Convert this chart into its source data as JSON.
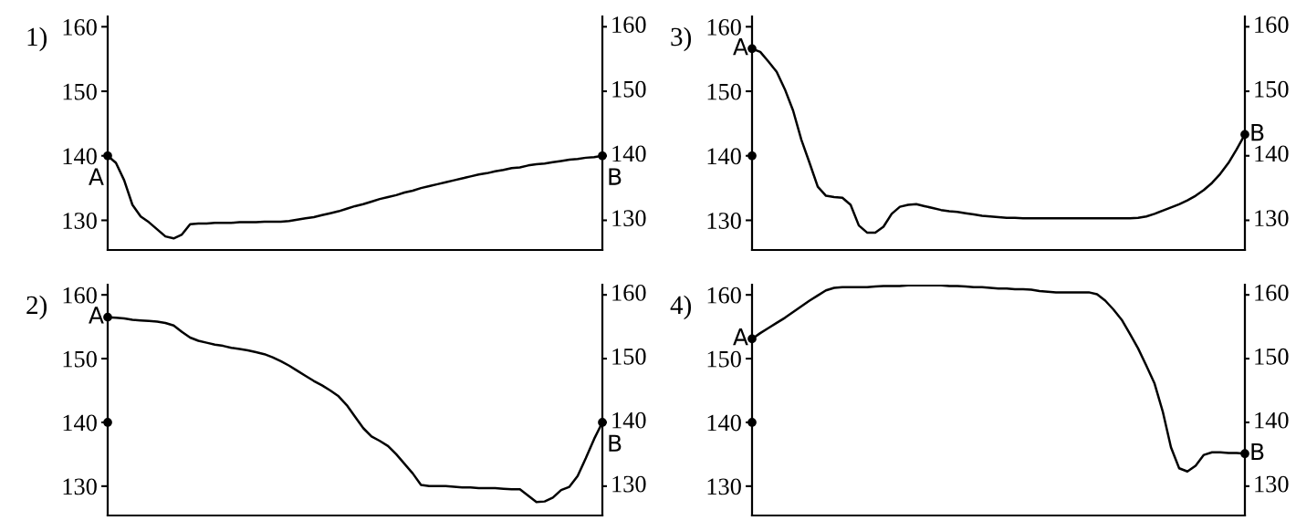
{
  "chart_data": [
    {
      "type": "line",
      "title": "1)",
      "categories": [
        null,
        null,
        null,
        null,
        null,
        null,
        null,
        null,
        null,
        null,
        null,
        null,
        null,
        null,
        null,
        null,
        null,
        null,
        null,
        null,
        null,
        null,
        null,
        null,
        null,
        null,
        null,
        null,
        null,
        null,
        null,
        null,
        null,
        null,
        null,
        null,
        null,
        null,
        null,
        null,
        null,
        null,
        null,
        null,
        null,
        null,
        null,
        null,
        null,
        null,
        null,
        null,
        null,
        null,
        null,
        null,
        null,
        null,
        null,
        null,
        null
      ],
      "series": [
        {
          "color": "#000000",
          "values": [
            140,
            138.9,
            136.2,
            132.4,
            130.6,
            129.7,
            128.6,
            127.5,
            127.2,
            127.8,
            129.4,
            129.5,
            129.5,
            129.6,
            129.6,
            129.6,
            129.7,
            129.7,
            129.7,
            129.8,
            129.8,
            129.8,
            129.9,
            130.1,
            130.3,
            130.5,
            130.8,
            131.1,
            131.4,
            131.8,
            132.2,
            132.5,
            132.9,
            133.3,
            133.6,
            133.9,
            134.3,
            134.6,
            135.0,
            135.3,
            135.6,
            135.9,
            136.2,
            136.5,
            136.8,
            137.1,
            137.3,
            137.6,
            137.8,
            138.1,
            138.2,
            138.5,
            138.7,
            138.8,
            139.0,
            139.2,
            139.4,
            139.5,
            139.7,
            139.8,
            140
          ]
        },
        {
          "type": "scatter",
          "color": "#000000",
          "marker": "circle",
          "values": [
            140,
            null,
            null,
            null,
            null,
            null,
            null,
            null,
            null,
            null,
            null,
            null,
            null,
            null,
            null,
            null,
            null,
            null,
            null,
            null,
            null,
            null,
            null,
            null,
            null,
            null,
            null,
            null,
            null,
            null,
            null,
            null,
            null,
            null,
            null,
            null,
            null,
            null,
            null,
            null,
            null,
            null,
            null,
            null,
            null,
            null,
            null,
            null,
            null,
            null,
            null,
            null,
            null,
            null,
            null,
            null,
            null,
            null,
            null,
            null,
            140
          ]
        }
      ],
      "annotations": [
        "A",
        "B"
      ],
      "ylim": [
        125.4,
        161.6
      ],
      "yticks": [
        130,
        140,
        150,
        160
      ],
      "y2lim": [
        125.4,
        161.6
      ],
      "y2ticks": [
        130,
        140,
        150,
        160
      ],
      "tick_labels": "y"
    },
    {
      "type": "line",
      "title": "3)",
      "categories": [
        null,
        null,
        null,
        null,
        null,
        null,
        null,
        null,
        null,
        null,
        null,
        null,
        null,
        null,
        null,
        null,
        null,
        null,
        null,
        null,
        null,
        null,
        null,
        null,
        null,
        null,
        null,
        null,
        null,
        null,
        null,
        null,
        null,
        null,
        null,
        null,
        null,
        null,
        null,
        null,
        null,
        null,
        null,
        null,
        null,
        null,
        null,
        null,
        null,
        null,
        null,
        null,
        null,
        null,
        null,
        null,
        null,
        null,
        null,
        null,
        null
      ],
      "series": [
        {
          "color": "#000000",
          "values": [
            156.6,
            156.1,
            154.6,
            153.0,
            150.3,
            147.0,
            142.5,
            138.9,
            135.2,
            133.8,
            133.6,
            133.5,
            132.4,
            129.2,
            128.1,
            128.1,
            129.0,
            131.0,
            132.1,
            132.4,
            132.5,
            132.2,
            131.9,
            131.6,
            131.4,
            131.3,
            131.1,
            130.9,
            130.7,
            130.6,
            130.5,
            130.4,
            130.4,
            130.3,
            130.3,
            130.3,
            130.3,
            130.3,
            130.3,
            130.3,
            130.3,
            130.3,
            130.3,
            130.3,
            130.3,
            130.3,
            130.3,
            130.4,
            130.6,
            131.0,
            131.5,
            132.0,
            132.5,
            133.1,
            133.8,
            134.7,
            135.8,
            137.2,
            138.9,
            141.0,
            143.3
          ]
        },
        {
          "type": "scatter",
          "color": "#000000",
          "marker": "circle",
          "values": [
            156.6,
            null,
            null,
            null,
            null,
            null,
            null,
            null,
            null,
            null,
            null,
            null,
            null,
            null,
            null,
            null,
            null,
            null,
            null,
            null,
            null,
            null,
            null,
            null,
            null,
            null,
            null,
            null,
            null,
            null,
            null,
            null,
            null,
            null,
            null,
            null,
            null,
            null,
            null,
            null,
            null,
            null,
            null,
            null,
            null,
            null,
            null,
            null,
            null,
            null,
            null,
            null,
            null,
            null,
            null,
            null,
            null,
            null,
            null,
            null,
            143.3
          ]
        },
        {
          "type": "scatter",
          "color": "#000000",
          "marker": "circle",
          "values": [
            140,
            null,
            null,
            null,
            null,
            null,
            null,
            null,
            null,
            null,
            null,
            null,
            null,
            null,
            null,
            null,
            null,
            null,
            null,
            null,
            null,
            null,
            null,
            null,
            null,
            null,
            null,
            null,
            null,
            null,
            null,
            null,
            null,
            null,
            null,
            null,
            null,
            null,
            null,
            null,
            null,
            null,
            null,
            null,
            null,
            null,
            null,
            null,
            null,
            null,
            null,
            null,
            null,
            null,
            null,
            null,
            null,
            null,
            null,
            null,
            null
          ]
        }
      ],
      "annotations": [
        "A",
        "B"
      ],
      "ylim": [
        125.4,
        161.6
      ],
      "yticks": [
        130,
        140,
        150,
        160
      ],
      "y2lim": [
        125.4,
        161.6
      ],
      "y2ticks": [
        130,
        140,
        150,
        160
      ],
      "tick_labels": "y"
    },
    {
      "type": "line",
      "title": "2)",
      "categories": [
        null,
        null,
        null,
        null,
        null,
        null,
        null,
        null,
        null,
        null,
        null,
        null,
        null,
        null,
        null,
        null,
        null,
        null,
        null,
        null,
        null,
        null,
        null,
        null,
        null,
        null,
        null,
        null,
        null,
        null,
        null,
        null,
        null,
        null,
        null,
        null,
        null,
        null,
        null,
        null,
        null,
        null,
        null,
        null,
        null,
        null,
        null,
        null,
        null,
        null,
        null,
        null,
        null,
        null,
        null,
        null,
        null,
        null,
        null,
        null,
        null
      ],
      "series": [
        {
          "color": "#000000",
          "values": [
            156.5,
            156.4,
            156.3,
            156.1,
            156.0,
            155.9,
            155.8,
            155.6,
            155.2,
            154.2,
            153.3,
            152.8,
            152.5,
            152.2,
            152.0,
            151.7,
            151.5,
            151.3,
            151.0,
            150.7,
            150.2,
            149.6,
            148.9,
            148.1,
            147.3,
            146.5,
            145.8,
            145.0,
            144.1,
            142.7,
            140.9,
            139.1,
            137.8,
            137.1,
            136.3,
            135.0,
            133.5,
            132.0,
            130.2,
            130.0,
            130.0,
            130.0,
            129.9,
            129.8,
            129.8,
            129.7,
            129.7,
            129.7,
            129.6,
            129.5,
            129.5,
            128.5,
            127.5,
            127.6,
            128.2,
            129.4,
            129.9,
            131.6,
            134.4,
            137.4,
            140.0
          ]
        },
        {
          "type": "scatter",
          "color": "#000000",
          "marker": "circle",
          "values": [
            156.5,
            null,
            null,
            null,
            null,
            null,
            null,
            null,
            null,
            null,
            null,
            null,
            null,
            null,
            null,
            null,
            null,
            null,
            null,
            null,
            null,
            null,
            null,
            null,
            null,
            null,
            null,
            null,
            null,
            null,
            null,
            null,
            null,
            null,
            null,
            null,
            null,
            null,
            null,
            null,
            null,
            null,
            null,
            null,
            null,
            null,
            null,
            null,
            null,
            null,
            null,
            null,
            null,
            null,
            null,
            null,
            null,
            null,
            null,
            null,
            140.0
          ]
        },
        {
          "type": "scatter",
          "color": "#000000",
          "marker": "circle",
          "values": [
            140,
            null,
            null,
            null,
            null,
            null,
            null,
            null,
            null,
            null,
            null,
            null,
            null,
            null,
            null,
            null,
            null,
            null,
            null,
            null,
            null,
            null,
            null,
            null,
            null,
            null,
            null,
            null,
            null,
            null,
            null,
            null,
            null,
            null,
            null,
            null,
            null,
            null,
            null,
            null,
            null,
            null,
            null,
            null,
            null,
            null,
            null,
            null,
            null,
            null,
            null,
            null,
            null,
            null,
            null,
            null,
            null,
            null,
            null,
            null,
            null
          ]
        }
      ],
      "annotations": [
        "A",
        "B"
      ],
      "ylim": [
        125.4,
        161.6
      ],
      "yticks": [
        130,
        140,
        150,
        160
      ],
      "y2lim": [
        125.4,
        161.6
      ],
      "y2ticks": [
        130,
        140,
        150,
        160
      ],
      "tick_labels": "y"
    },
    {
      "type": "line",
      "title": "4)",
      "categories": [
        null,
        null,
        null,
        null,
        null,
        null,
        null,
        null,
        null,
        null,
        null,
        null,
        null,
        null,
        null,
        null,
        null,
        null,
        null,
        null,
        null,
        null,
        null,
        null,
        null,
        null,
        null,
        null,
        null,
        null,
        null,
        null,
        null,
        null,
        null,
        null,
        null,
        null,
        null,
        null,
        null,
        null,
        null,
        null,
        null,
        null,
        null,
        null,
        null,
        null,
        null,
        null,
        null,
        null,
        null,
        null,
        null,
        null,
        null,
        null,
        null
      ],
      "series": [
        {
          "color": "#000000",
          "values": [
            153.1,
            154.0,
            154.8,
            155.6,
            156.4,
            157.3,
            158.2,
            159.1,
            159.9,
            160.7,
            161.1,
            161.2,
            161.2,
            161.2,
            161.2,
            161.3,
            161.4,
            161.4,
            161.4,
            161.5,
            161.5,
            161.5,
            161.5,
            161.5,
            161.4,
            161.4,
            161.3,
            161.2,
            161.2,
            161.1,
            161.0,
            161.0,
            160.9,
            160.9,
            160.8,
            160.6,
            160.5,
            160.4,
            160.4,
            160.4,
            160.4,
            160.4,
            160.1,
            159.1,
            157.7,
            156.1,
            153.9,
            151.6,
            148.9,
            146.1,
            141.7,
            136.1,
            132.8,
            132.3,
            133.2,
            134.9,
            135.3,
            135.3,
            135.2,
            135.2,
            135.1
          ]
        },
        {
          "type": "scatter",
          "color": "#000000",
          "marker": "circle",
          "values": [
            153.1,
            null,
            null,
            null,
            null,
            null,
            null,
            null,
            null,
            null,
            null,
            null,
            null,
            null,
            null,
            null,
            null,
            null,
            null,
            null,
            null,
            null,
            null,
            null,
            null,
            null,
            null,
            null,
            null,
            null,
            null,
            null,
            null,
            null,
            null,
            null,
            null,
            null,
            null,
            null,
            null,
            null,
            null,
            null,
            null,
            null,
            null,
            null,
            null,
            null,
            null,
            null,
            null,
            null,
            null,
            null,
            null,
            null,
            null,
            null,
            135.1
          ]
        },
        {
          "type": "scatter",
          "color": "#000000",
          "marker": "circle",
          "values": [
            140,
            null,
            null,
            null,
            null,
            null,
            null,
            null,
            null,
            null,
            null,
            null,
            null,
            null,
            null,
            null,
            null,
            null,
            null,
            null,
            null,
            null,
            null,
            null,
            null,
            null,
            null,
            null,
            null,
            null,
            null,
            null,
            null,
            null,
            null,
            null,
            null,
            null,
            null,
            null,
            null,
            null,
            null,
            null,
            null,
            null,
            null,
            null,
            null,
            null,
            null,
            null,
            null,
            null,
            null,
            null,
            null,
            null,
            null,
            null,
            null
          ]
        }
      ],
      "annotations": [
        "A",
        "B"
      ],
      "ylim": [
        125.4,
        161.6
      ],
      "yticks": [
        130,
        140,
        150,
        160
      ],
      "y2lim": [
        125.4,
        161.6
      ],
      "y2ticks": [
        130,
        140,
        150,
        160
      ],
      "tick_labels": "y"
    }
  ]
}
